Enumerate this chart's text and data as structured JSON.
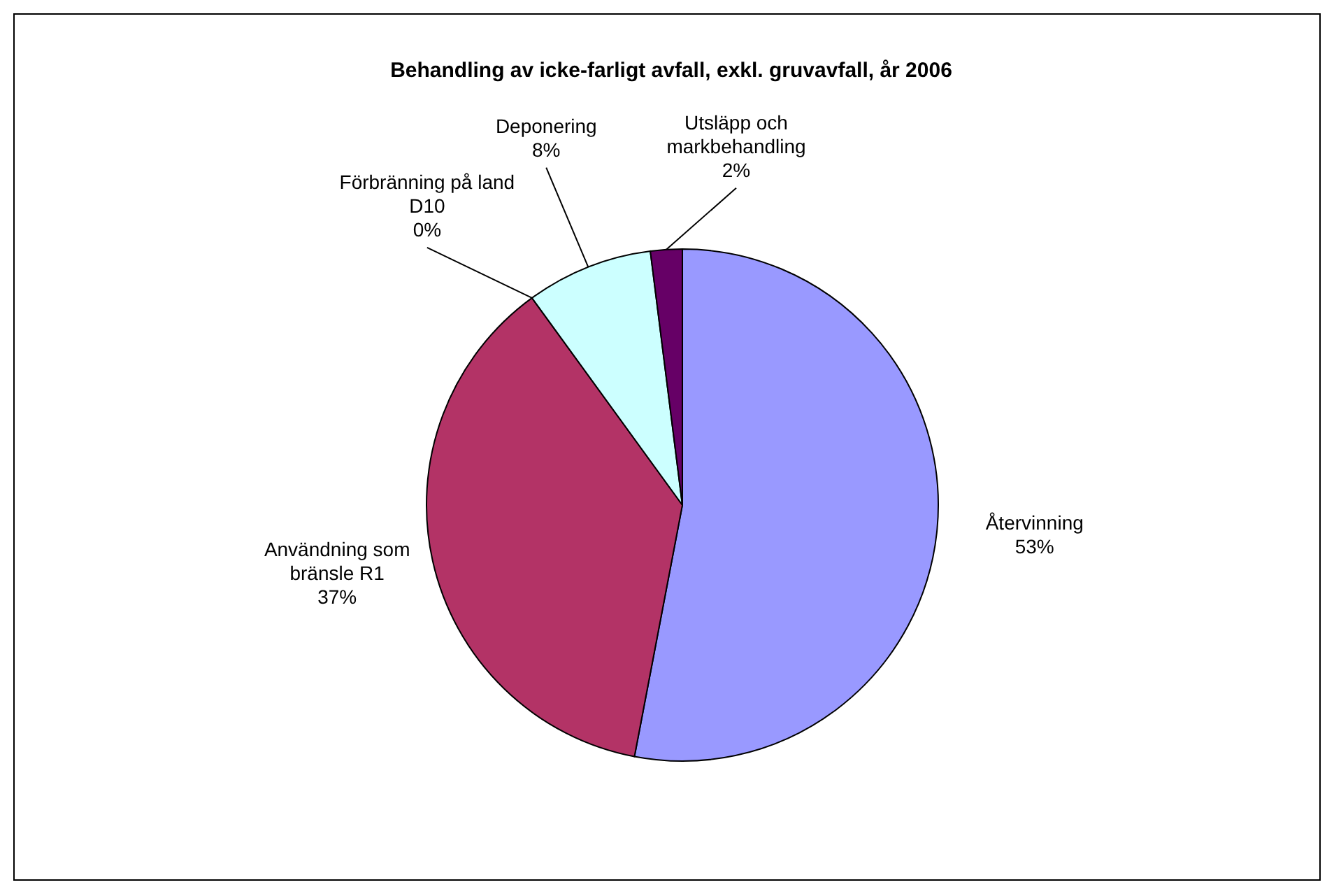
{
  "chart_data": {
    "type": "pie",
    "title": "Behandling av icke-farligt avfall, exkl. gruvavfall, år 2006",
    "categories": [
      "Återvinning",
      "Användning som bränsle R1",
      "Förbränning på land D10",
      "Deponering",
      "Utsläpp och markbehandling"
    ],
    "values": [
      53,
      37,
      0,
      8,
      2
    ],
    "value_labels": [
      "53%",
      "37%",
      "0%",
      "8%",
      "2%"
    ],
    "colors": [
      "#9999ff",
      "#b33366",
      null,
      "#ccffff",
      "#660066"
    ],
    "legend": false
  }
}
